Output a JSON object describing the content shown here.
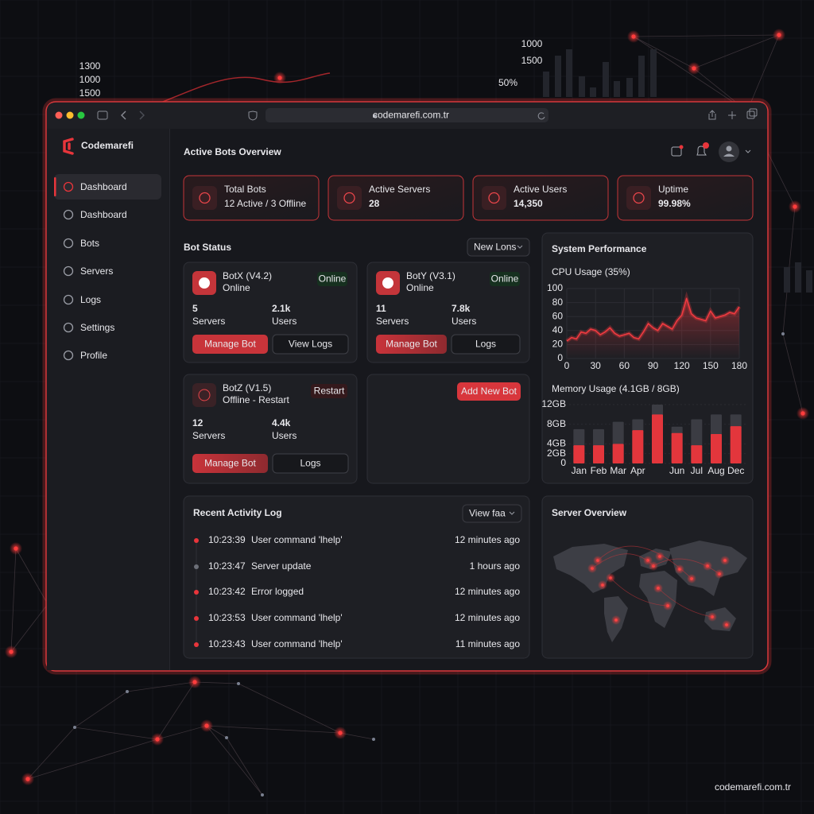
{
  "browser": {
    "url": "codemarefi.com.tr"
  },
  "background": {
    "labels": [
      "1300",
      "1000",
      "1500",
      "1000",
      "1500",
      "50%"
    ]
  },
  "sidebar": {
    "brand": "Codemarefi",
    "nav": [
      "Dashboard",
      "Dashboard",
      "Bots",
      "Servers",
      "Logs",
      "Settings",
      "Profile"
    ]
  },
  "header": {
    "title": "Active Bots Overview"
  },
  "stats": [
    {
      "label": "Total Bots",
      "value": "12 Active / 3 Offline"
    },
    {
      "label": "Active Servers",
      "value": "28"
    },
    {
      "label": "Active Users",
      "value": "14,350"
    },
    {
      "label": "Uptime",
      "value": "99.98%"
    }
  ],
  "bot_status": {
    "title": "Bot Status",
    "filter": "New Lons",
    "add_button": "Add New Bot",
    "bots": [
      {
        "name": "BotX (V4.2)",
        "status": "Online",
        "badge": "Online",
        "servers": "5",
        "servers_label": "Servers",
        "users": "2.1k",
        "users_label": "Users",
        "primary_button": "Manage Bot",
        "secondary_button": "View Logs"
      },
      {
        "name": "BotY (V3.1)",
        "status": "Online",
        "badge": "Online",
        "servers": "11",
        "servers_label": "Servers",
        "users": "7.8k",
        "users_label": "Users",
        "primary_button": "Manage Bot",
        "secondary_button": "Logs"
      },
      {
        "name": "BotZ (V1.5)",
        "status": "Offline - Restart",
        "badge": "Restart",
        "servers": "12",
        "servers_label": "Servers",
        "users": "4.4k",
        "users_label": "Users",
        "primary_button": "Manage Bot",
        "secondary_button": "Logs"
      }
    ]
  },
  "system_performance": {
    "title": "System Performance"
  },
  "chart_data": [
    {
      "type": "line",
      "title": "CPU Usage (35%)",
      "x": [
        0,
        5,
        10,
        15,
        20,
        25,
        30,
        35,
        40,
        45,
        50,
        55,
        60,
        65,
        70,
        75,
        80,
        85,
        90,
        95,
        100,
        105,
        110,
        115,
        120,
        125,
        130,
        135,
        140,
        145,
        150,
        155,
        160,
        165,
        170,
        175,
        180
      ],
      "values": [
        25,
        30,
        28,
        38,
        36,
        42,
        40,
        34,
        38,
        44,
        36,
        32,
        34,
        36,
        30,
        28,
        38,
        50,
        44,
        40,
        50,
        46,
        42,
        54,
        62,
        86,
        64,
        58,
        56,
        54,
        68,
        58,
        60,
        62,
        66,
        64,
        74
      ],
      "color": "#ef3a40",
      "xlim": [
        0,
        180
      ],
      "ylim": [
        0,
        100
      ],
      "xticks": [
        0,
        30,
        60,
        90,
        120,
        150,
        180
      ],
      "yticks": [
        0,
        20,
        40,
        60,
        80,
        100
      ],
      "grid": true
    },
    {
      "type": "bar",
      "title": "Memory Usage (4.1GB / 8GB)",
      "categories": [
        "Jan",
        "Feb",
        "Mar",
        "Apr",
        null,
        "Jun",
        "Jul",
        "Aug",
        "Dec"
      ],
      "series": [
        {
          "color": "#3b3c43",
          "values": [
            7,
            7,
            8.5,
            9,
            12,
            7.5,
            9,
            10,
            10
          ]
        },
        {
          "color": "#e3363c",
          "values": [
            3.7,
            3.7,
            4,
            6.8,
            10,
            6.2,
            3.7,
            6,
            7.6
          ]
        }
      ],
      "ylim": [
        0,
        12
      ],
      "yticks": [
        0,
        {
          "value": 2,
          "label": "2GB"
        },
        {
          "value": 4,
          "label": "4GB"
        },
        {
          "value": 8,
          "label": "8GB"
        },
        {
          "value": 12,
          "label": "12GB"
        }
      ]
    }
  ],
  "activity": {
    "title": "Recent Activity Log",
    "filter": "View faa",
    "rows": [
      {
        "time": "10:23:39",
        "message": "User command 'lhelp'",
        "ago": "12 minutes ago"
      },
      {
        "time": "10:23:47",
        "message": "Server update",
        "ago": "1 hours ago"
      },
      {
        "time": "10:23:42",
        "message": "Error logged",
        "ago": "12 minutes ago"
      },
      {
        "time": "10:23:53",
        "message": "User command 'lhelp'",
        "ago": "12 minutes ago"
      },
      {
        "time": "10:23:43",
        "message": "User command 'lhelp'",
        "ago": "11 minutes ago"
      }
    ]
  },
  "server_overview": {
    "title": "Server Overview"
  },
  "footer": {
    "watermark": "codemarefi.com.tr"
  }
}
